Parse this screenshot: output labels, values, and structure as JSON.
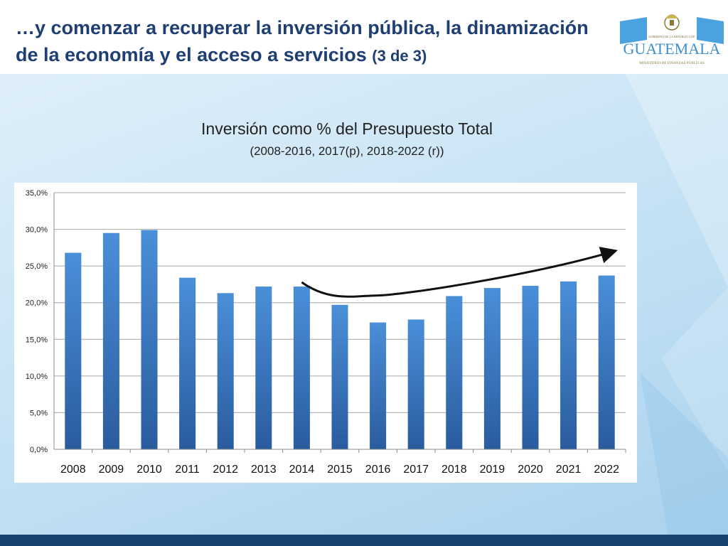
{
  "slide": {
    "title_main": "…y comenzar a recuperar  la inversión pública,  la dinamización de la economía y el acceso a servicios",
    "title_suffix": "(3 de 3)"
  },
  "logo": {
    "top_text": "GOBIERNO DE LA REPÚBLICA DE",
    "wordmark": "GUATEMALA",
    "bottom_text": "MINISTERIO DE FINANZAS PÚBLICAS"
  },
  "chart_data": {
    "type": "bar",
    "title": "Inversión como % del Presupuesto Total",
    "subtitle": "(2008-2016, 2017(p), 2018-2022 (r))",
    "categories": [
      "2008",
      "2009",
      "2010",
      "2011",
      "2012",
      "2013",
      "2014",
      "2015",
      "2016",
      "2017",
      "2018",
      "2019",
      "2020",
      "2021",
      "2022"
    ],
    "values": [
      26.8,
      29.5,
      29.9,
      23.4,
      21.3,
      22.2,
      22.2,
      19.7,
      17.3,
      17.7,
      20.9,
      22.0,
      22.3,
      22.9,
      23.7
    ],
    "ylim": [
      0,
      35
    ],
    "ytick_labels": [
      "0,0%",
      "5,0%",
      "10,0%",
      "15,0%",
      "20,0%",
      "25,0%",
      "30,0%",
      "35,0%"
    ],
    "grid": true,
    "bar_color_top": "#4a8fd9",
    "bar_color_bottom": "#2a5c9e",
    "trend_arrow": {
      "from_year": "2014",
      "via_year": "2016",
      "to_year": "2022"
    }
  }
}
